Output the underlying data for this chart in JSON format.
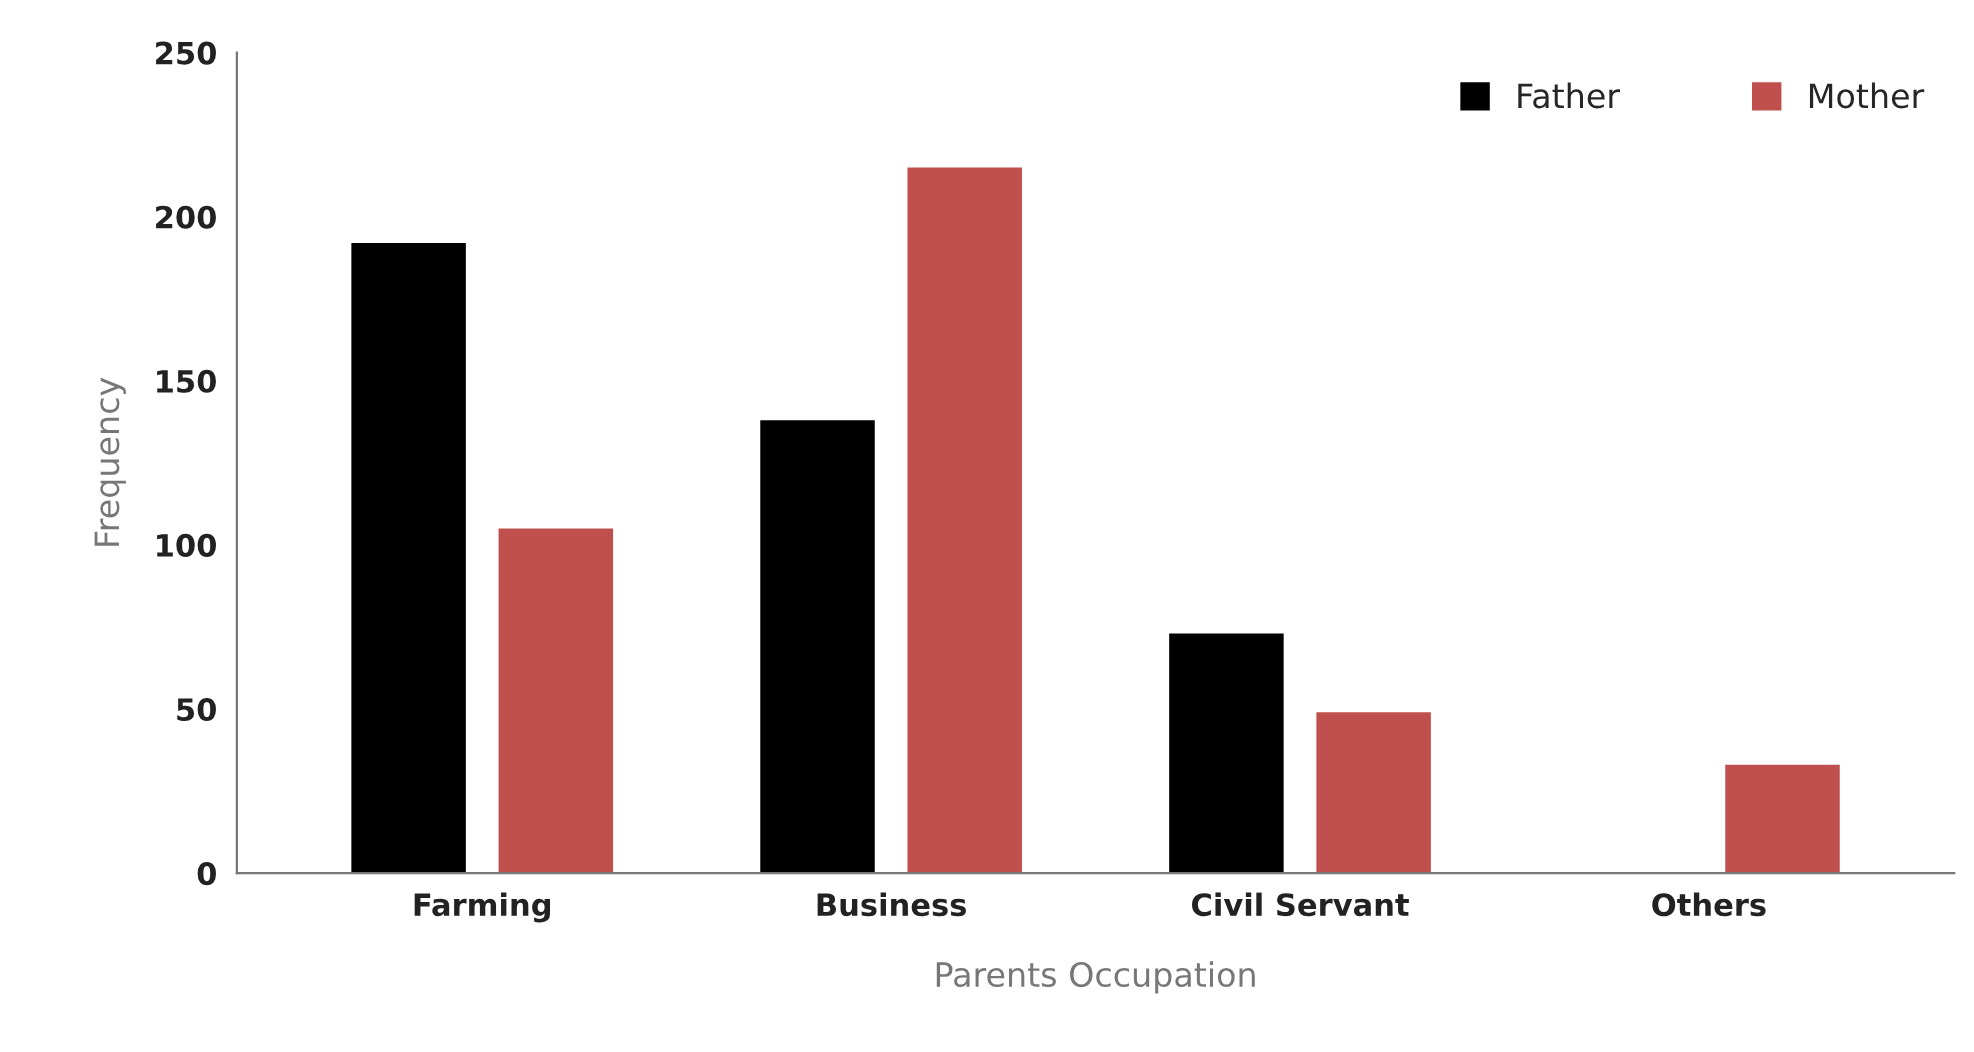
{
  "chart_data": {
    "type": "bar",
    "xlabel": "Parents Occupation",
    "ylabel": "Frequency",
    "categories": [
      "Farming",
      "Business",
      "Civil Servant",
      "Others"
    ],
    "series": [
      {
        "name": "Father",
        "color": "#000000",
        "values": [
          192,
          138,
          73,
          null
        ]
      },
      {
        "name": "Mother",
        "color": "#c0504d",
        "values": [
          105,
          215,
          49,
          33
        ]
      }
    ],
    "ylim": [
      0,
      250
    ],
    "yticks": [
      0,
      50,
      100,
      150,
      200,
      250
    ],
    "grid": false,
    "legend": "top right"
  }
}
